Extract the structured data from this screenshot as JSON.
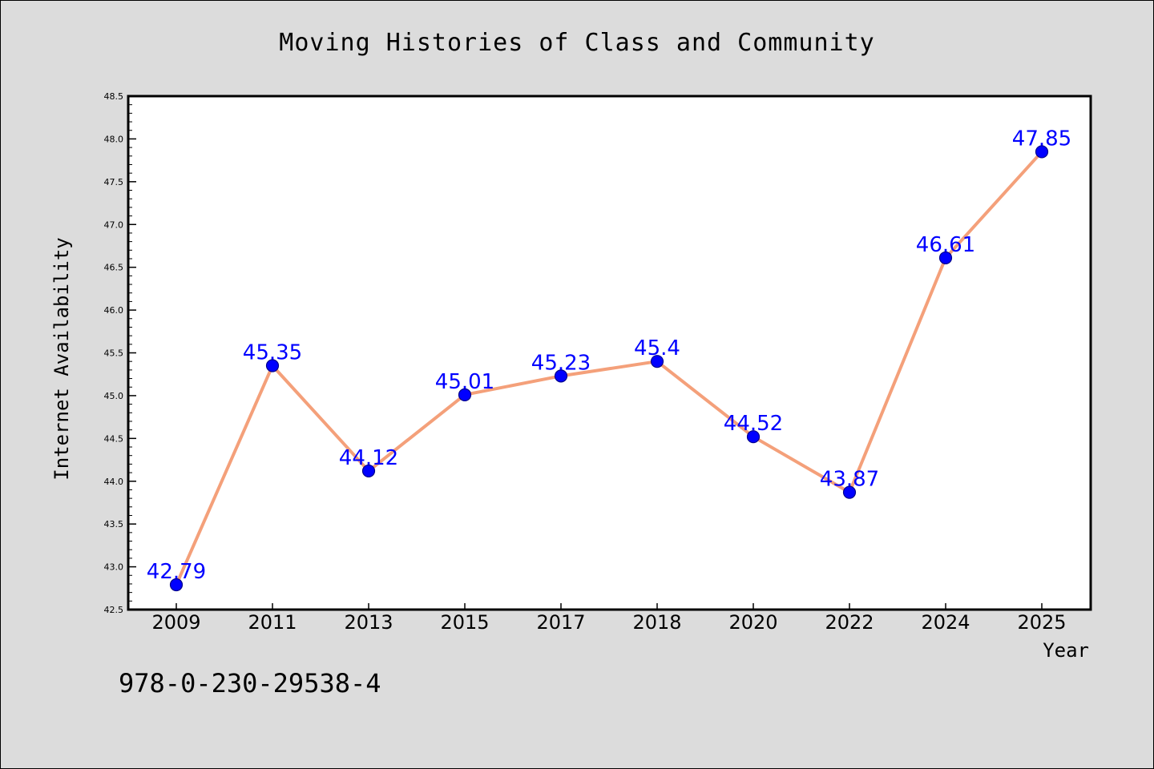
{
  "chart_data": {
    "type": "line",
    "title": "Moving Histories of Class and Community",
    "xlabel": "Year",
    "ylabel": "Internet Availability",
    "categories": [
      "2009",
      "2011",
      "2013",
      "2015",
      "2017",
      "2018",
      "2020",
      "2022",
      "2024",
      "2025"
    ],
    "series": [
      {
        "values": [
          42.79,
          45.35,
          44.12,
          45.01,
          45.23,
          45.4,
          44.52,
          43.87,
          46.61,
          47.85
        ],
        "labels": [
          "42.79",
          "45.35",
          "44.12",
          "45.01",
          "45.23",
          "45.4",
          "44.52",
          "43.87",
          "46.61",
          "47.85"
        ]
      }
    ],
    "ylim": [
      42.5,
      48.5
    ],
    "yticks": [
      "42.5",
      "43.0",
      "43.5",
      "44.0",
      "44.5",
      "45.0",
      "45.5",
      "46.0",
      "46.5",
      "47.0",
      "47.5",
      "48.0",
      "48.5"
    ],
    "grid": false,
    "line_color": "#f4a07a",
    "marker_color": "#0000ff",
    "label_color": "#0000ff"
  },
  "footer": {
    "isbn": "978-0-230-29538-4"
  }
}
